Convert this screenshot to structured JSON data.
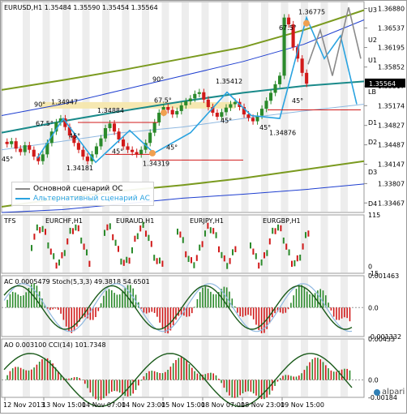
{
  "main_header": "EURUSD,H1  1.35484 1.35590 1.35454 1.35564",
  "colors": {
    "up_candle": "#2b8a2b",
    "down_candle": "#d11a1a",
    "ma_olive": "#7a9a1f",
    "ma_teal": "#1a8a8a",
    "ma_blue": "#1f3fd0",
    "thin_blue": "#8fb8e0",
    "base_scenario": "#8a8a8a",
    "alt_scenario": "#2aa3e0",
    "gold_band": "#f5e6a8",
    "night_stripe": "#e6e6e6",
    "level_line": "#d11a1a",
    "marker": "#f0a050"
  },
  "price_axis": [
    "1.36880",
    "1.36537",
    "1.36195",
    "1.35852",
    "1.35517",
    "1.35174",
    "1.34827",
    "1.34487",
    "1.34147",
    "1.33807",
    "1.33467"
  ],
  "current_price": "1.35564",
  "level_labels": [
    "U3",
    "U2",
    "U1",
    "LB",
    "D1",
    "D2",
    "D3",
    "D4"
  ],
  "legend": {
    "base": "Основной сценарий ОС",
    "alt": "Альтернативный сценарий АС"
  },
  "annotations": {
    "prices": [
      "1.36775",
      "1.35412",
      "1.34947",
      "1.34884",
      "1.34181",
      "1.34319",
      "1.34876"
    ],
    "angles": [
      "67.5°",
      "90°",
      "90°",
      "67.5°",
      "67.5°",
      "45°",
      "45°",
      "45°",
      "45°",
      "45°",
      "45°",
      "45°"
    ]
  },
  "panel2": {
    "tfs": "TFS",
    "labels": [
      "EURCHF,H1",
      "EURAUD,H1",
      "EURJPY,H1",
      "EURGBP,H1"
    ],
    "axis": [
      "115",
      "0",
      "-15"
    ]
  },
  "panel3": {
    "header": "AC 0.0005479  Stoch(5,3,3) 49.3818 54.6501",
    "axis": [
      "0.001463",
      "0.0",
      "-0.001332"
    ]
  },
  "panel4": {
    "header": "AO 0.003100  CCI(14) 101.7348",
    "axis": [
      "0.00433",
      "0.0",
      "-0.00184"
    ]
  },
  "time_axis": [
    "12 Nov 2013",
    "13 Nov 15:00",
    "14 Nov 07:00",
    "14 Nov 23:00",
    "15 Nov 15:00",
    "18 Nov 07:00",
    "18 Nov 23:00",
    "19 Nov 15:00"
  ],
  "brand": "alpari",
  "chart_data": {
    "type": "candlestick",
    "symbol": "EURUSD",
    "timeframe": "H1",
    "ohlc_last": {
      "open": 1.35484,
      "high": 1.3559,
      "low": 1.35454,
      "close": 1.35564
    },
    "close_path": [
      1.345,
      1.3455,
      1.3442,
      1.3436,
      1.3448,
      1.344,
      1.3428,
      1.342,
      1.3432,
      1.3452,
      1.3472,
      1.3488,
      1.3495,
      1.348,
      1.3465,
      1.3452,
      1.344,
      1.3428,
      1.342,
      1.3432,
      1.3446,
      1.346,
      1.3478,
      1.3486,
      1.3472,
      1.3458,
      1.3446,
      1.344,
      1.3436,
      1.3432,
      1.344,
      1.3452,
      1.347,
      1.3488,
      1.3505,
      1.3515,
      1.351,
      1.3502,
      1.3508,
      1.3518,
      1.3525,
      1.353,
      1.3538,
      1.3541,
      1.3528,
      1.3515,
      1.3505,
      1.3498,
      1.3506,
      1.3514,
      1.352,
      1.3524,
      1.3515,
      1.3502,
      1.3496,
      1.349,
      1.35,
      1.3512,
      1.3526,
      1.354,
      1.3555,
      1.357,
      1.3672,
      1.366,
      1.362,
      1.36,
      1.3575,
      1.3556
    ],
    "y_range": [
      1.333,
      1.37
    ],
    "panel2_range": [
      -15,
      115
    ],
    "panel3_range": [
      -0.001332,
      0.001463
    ],
    "panel4_range": [
      -0.00184,
      0.00433
    ]
  }
}
